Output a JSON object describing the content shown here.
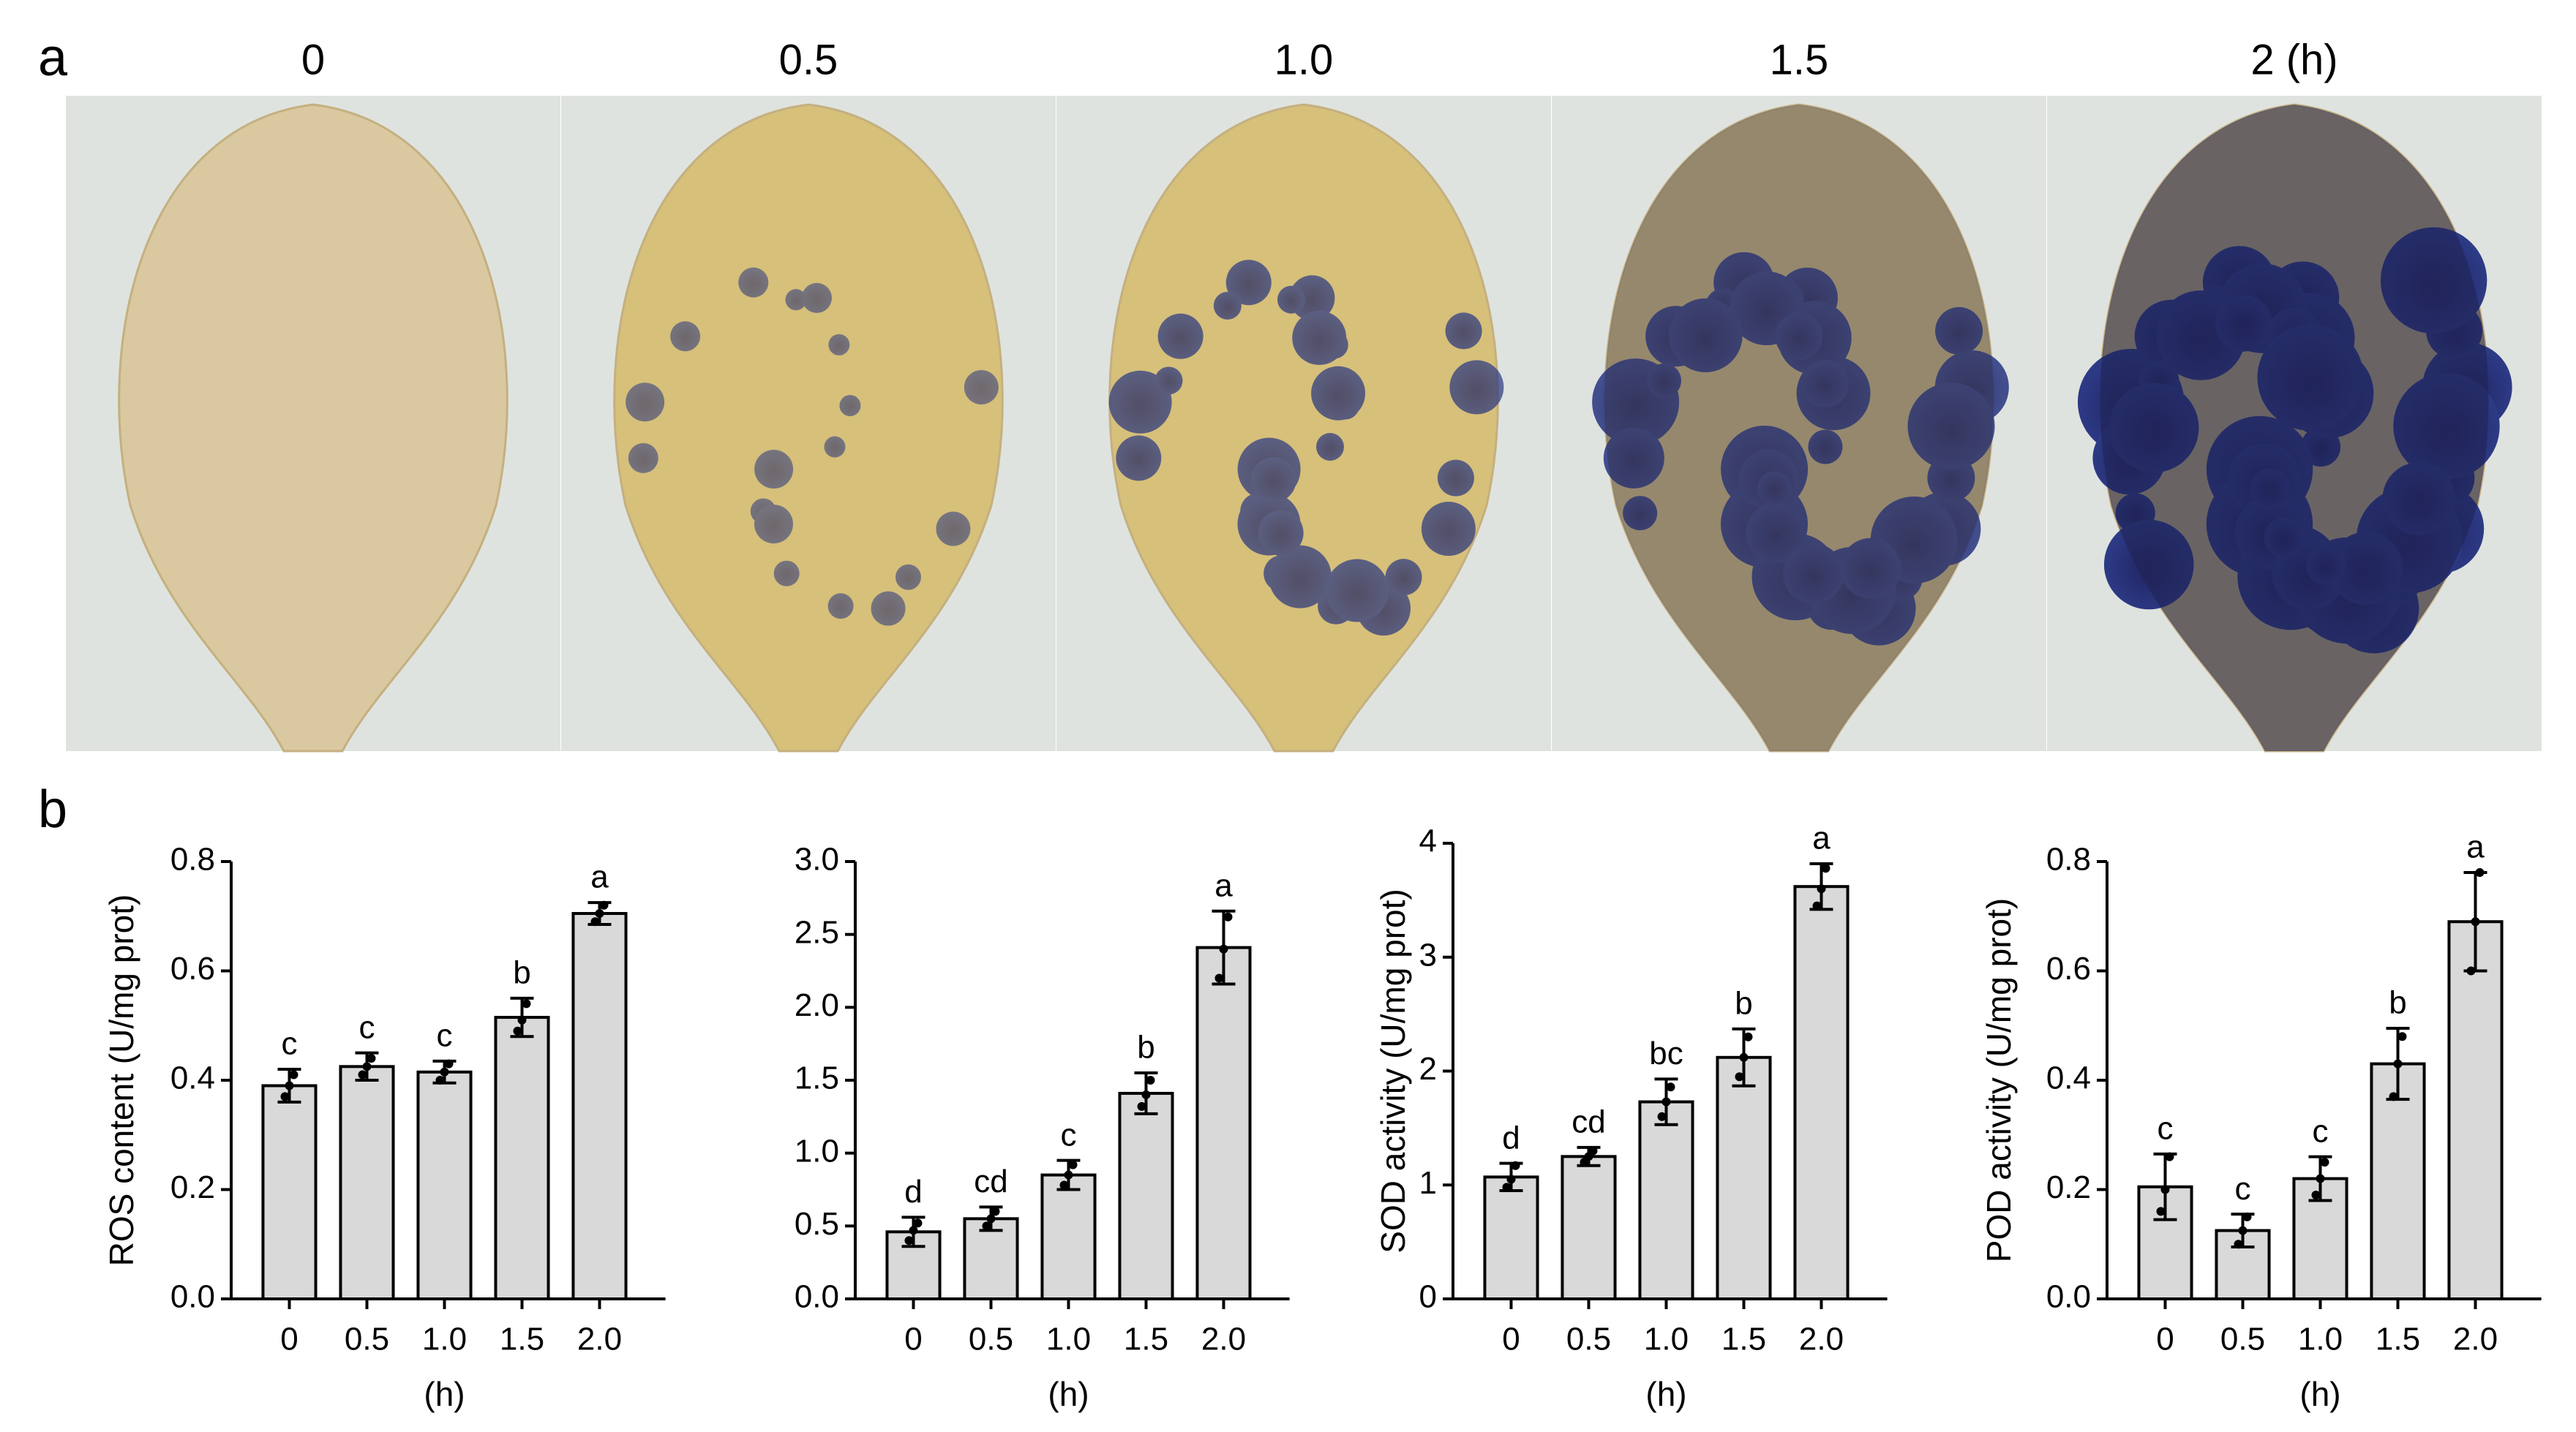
{
  "panel_a": {
    "label": "a",
    "times": [
      "0",
      "0.5",
      "1.0",
      "1.5",
      "2  (h)"
    ]
  },
  "panel_b": {
    "label": "b"
  },
  "chart_data": [
    {
      "type": "bar",
      "y_label": "ROS content (U/mg prot)",
      "x_label": "(h)",
      "categories": [
        "0",
        "0.5",
        "1.0",
        "1.5",
        "2.0"
      ],
      "values": [
        0.39,
        0.425,
        0.415,
        0.515,
        0.705
      ],
      "errors": [
        0.03,
        0.025,
        0.02,
        0.035,
        0.02
      ],
      "points": [
        [
          0.37,
          0.39,
          0.41
        ],
        [
          0.41,
          0.425,
          0.44
        ],
        [
          0.4,
          0.415,
          0.43
        ],
        [
          0.49,
          0.51,
          0.54
        ],
        [
          0.69,
          0.705,
          0.72
        ]
      ],
      "annotations": [
        "c",
        "c",
        "c",
        "b",
        "a"
      ],
      "color": "#d9d9d9",
      "edge_color": "#000000",
      "ylim": [
        0,
        0.8
      ],
      "yticks": [
        {
          "value": 0,
          "label": "0.0"
        },
        0.2,
        0.4,
        0.6,
        0.8
      ]
    },
    {
      "type": "bar",
      "x_label": "(h)",
      "categories": [
        "0",
        "0.5",
        "1.0",
        "1.5",
        "2.0"
      ],
      "values": [
        0.46,
        0.55,
        0.85,
        1.41,
        2.41
      ],
      "errors": [
        0.1,
        0.08,
        0.1,
        0.14,
        0.25
      ],
      "points": [
        [
          0.4,
          0.47,
          0.52
        ],
        [
          0.5,
          0.55,
          0.6
        ],
        [
          0.78,
          0.85,
          0.92
        ],
        [
          1.32,
          1.4,
          1.5
        ],
        [
          2.2,
          2.4,
          2.62
        ]
      ],
      "annotations": [
        "d",
        "cd",
        "c",
        "b",
        "a"
      ],
      "color": "#d9d9d9",
      "edge_color": "#000000",
      "ylim": [
        0,
        3
      ],
      "yticks": [
        {
          "value": 0,
          "label": "0.0"
        },
        0.5,
        {
          "value": 1,
          "label": "1.0"
        },
        1.5,
        {
          "value": 2,
          "label": "2.0"
        },
        2.5,
        {
          "value": 3,
          "label": "3.0"
        }
      ]
    },
    {
      "type": "bar",
      "y_label": "SOD activity (U/mg prot)",
      "x_label": "(h)",
      "categories": [
        "0",
        "0.5",
        "1.0",
        "1.5",
        "2.0"
      ],
      "values": [
        1.07,
        1.25,
        1.73,
        2.12,
        3.62
      ],
      "errors": [
        0.12,
        0.08,
        0.2,
        0.25,
        0.2
      ],
      "points": [
        [
          0.98,
          1.05,
          1.17
        ],
        [
          1.2,
          1.25,
          1.3
        ],
        [
          1.6,
          1.73,
          1.86
        ],
        [
          1.95,
          2.12,
          2.3
        ],
        [
          3.45,
          3.6,
          3.78
        ]
      ],
      "annotations": [
        "d",
        "cd",
        "bc",
        "b",
        "a"
      ],
      "color": "#d9d9d9",
      "edge_color": "#000000",
      "ylim": [
        0,
        4
      ],
      "yticks": [
        0,
        1,
        2,
        3,
        4
      ]
    },
    {
      "type": "bar",
      "y_label": "POD activity (U/mg prot)",
      "x_label": "(h)",
      "categories": [
        "0",
        "0.5",
        "1.0",
        "1.5",
        "2.0"
      ],
      "values": [
        0.205,
        0.125,
        0.22,
        0.43,
        0.69
      ],
      "errors": [
        0.06,
        0.03,
        0.04,
        0.065,
        0.09
      ],
      "points": [
        [
          0.16,
          0.2,
          0.26
        ],
        [
          0.1,
          0.125,
          0.15
        ],
        [
          0.19,
          0.22,
          0.25
        ],
        [
          0.37,
          0.43,
          0.48
        ],
        [
          0.6,
          0.69,
          0.78
        ]
      ],
      "annotations": [
        "c",
        "c",
        "c",
        "b",
        "a"
      ],
      "color": "#d9d9d9",
      "edge_color": "#000000",
      "ylim": [
        0,
        0.8
      ],
      "yticks": [
        {
          "value": 0,
          "label": "0.0"
        },
        0.2,
        0.4,
        0.6,
        0.8
      ]
    }
  ]
}
